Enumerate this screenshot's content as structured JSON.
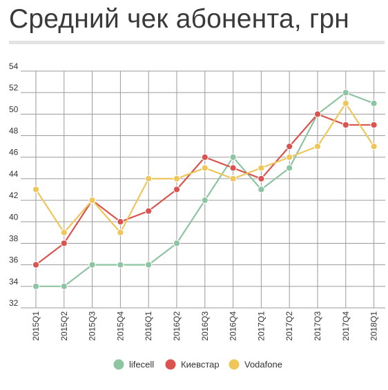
{
  "title": "Средний чек абонента, грн",
  "chart_data": {
    "type": "line",
    "categories": [
      "2015Q1",
      "2015Q2",
      "2015Q3",
      "2015Q4",
      "2016Q1",
      "2016Q2",
      "2016Q3",
      "2016Q4",
      "2017Q1",
      "2017Q2",
      "2017Q3",
      "2017Q4",
      "2018Q1"
    ],
    "ylim": [
      32,
      54
    ],
    "yticks": [
      32,
      34,
      36,
      38,
      40,
      42,
      44,
      46,
      48,
      50,
      52,
      54
    ],
    "grid": true,
    "legend_position": "bottom",
    "series": [
      {
        "name": "lifecell",
        "color": "#8dc4a1",
        "values": [
          34,
          34,
          36,
          36,
          36,
          38,
          42,
          46,
          43,
          45,
          50,
          52,
          51
        ]
      },
      {
        "name": "Киевстар",
        "color": "#d9534f",
        "values": [
          36,
          38,
          42,
          40,
          41,
          43,
          46,
          45,
          44,
          47,
          50,
          49,
          49
        ]
      },
      {
        "name": "Vodafone",
        "color": "#eec65a",
        "values": [
          43,
          39,
          42,
          39,
          44,
          44,
          45,
          44,
          45,
          46,
          47,
          51,
          47
        ]
      }
    ]
  }
}
